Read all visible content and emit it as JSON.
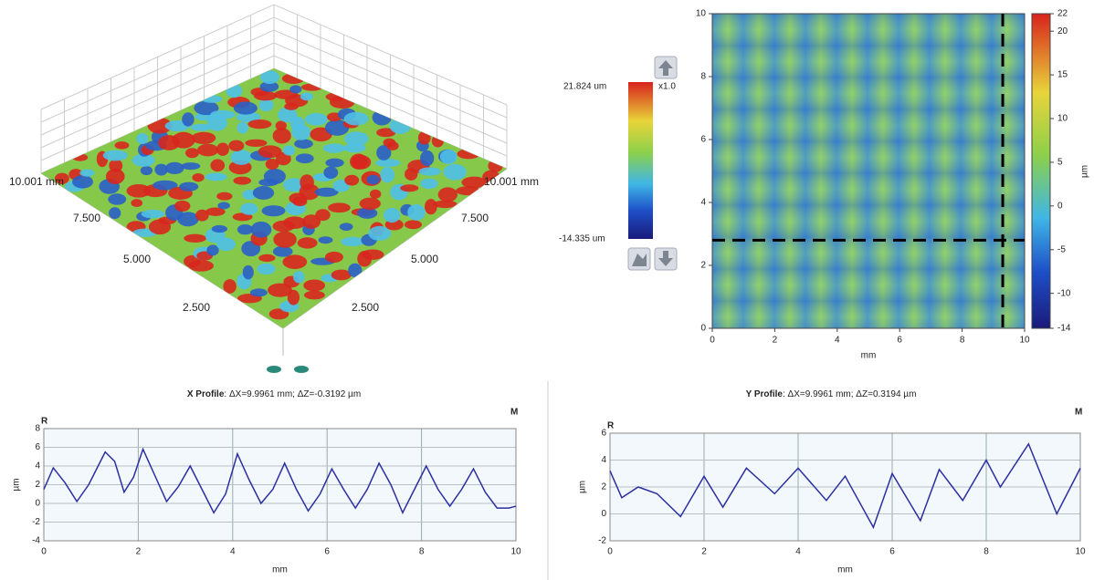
{
  "chart_data": [
    {
      "type": "surface3d",
      "left_axis_labels": [
        "10.001 mm",
        "7.500",
        "5.000",
        "2.500"
      ],
      "right_axis_labels": [
        "10.001 mm",
        "7.500",
        "5.000",
        "2.500"
      ]
    },
    {
      "type": "colorscale",
      "max_label": "21.824 um",
      "min_label": "-14.335 um",
      "zoom_label": "x1.0"
    },
    {
      "type": "heatmap",
      "xlabel": "mm",
      "xlim": [
        0,
        10
      ],
      "ylim": [
        0,
        10
      ],
      "xticks": [
        0,
        2,
        4,
        6,
        8,
        10
      ],
      "yticks": [
        0,
        2,
        4,
        6,
        8,
        10
      ],
      "colorbar": {
        "label": "µm",
        "lim": [
          -14,
          22
        ],
        "ticks": [
          -14,
          -10,
          -5,
          0,
          5,
          10,
          15,
          20,
          22
        ]
      },
      "cursor": {
        "x": 9.3,
        "y": 2.8
      }
    },
    {
      "type": "line",
      "title_bold": "X Profile",
      "title": ": ΔX=9.9961 mm; ΔZ=-0.3192 µm",
      "left_marker": "R",
      "right_marker": "M",
      "xlabel": "mm",
      "ylabel": "µm",
      "xlim": [
        0,
        10
      ],
      "ylim": [
        -4,
        8
      ],
      "xticks": [
        0,
        2,
        4,
        6,
        8,
        10
      ],
      "yticks": [
        -4,
        -2,
        0,
        2,
        4,
        6,
        8
      ],
      "grid": true,
      "x": [
        0,
        0.2,
        0.45,
        0.7,
        0.95,
        1.3,
        1.5,
        1.7,
        1.9,
        2.1,
        2.35,
        2.6,
        2.85,
        3.1,
        3.35,
        3.6,
        3.85,
        4.1,
        4.35,
        4.6,
        4.85,
        5.1,
        5.35,
        5.6,
        5.85,
        6.1,
        6.35,
        6.6,
        6.85,
        7.1,
        7.35,
        7.6,
        7.85,
        8.1,
        8.35,
        8.6,
        8.85,
        9.1,
        9.35,
        9.6,
        9.85,
        10
      ],
      "values": [
        1.5,
        3.8,
        2.2,
        0.2,
        2.0,
        5.5,
        4.5,
        1.2,
        2.8,
        5.8,
        3.0,
        0.2,
        1.8,
        4.0,
        1.5,
        -1.0,
        1.0,
        5.3,
        2.5,
        0.0,
        1.5,
        4.3,
        1.5,
        -0.8,
        1.0,
        3.7,
        1.5,
        -0.5,
        1.5,
        4.3,
        2.0,
        -1.0,
        1.5,
        4.0,
        1.5,
        -0.3,
        1.5,
        3.7,
        1.2,
        -0.5,
        -0.5,
        -0.3
      ],
      "color": "#2b2fa0"
    },
    {
      "type": "line",
      "title_bold": "Y Profile",
      "title": ": ΔX=9.9961 mm; ΔZ=0.3194 µm",
      "left_marker": "R",
      "right_marker": "M",
      "xlabel": "mm",
      "ylabel": "µm",
      "xlim": [
        0,
        10
      ],
      "ylim": [
        -2,
        6
      ],
      "xticks": [
        0,
        2,
        4,
        6,
        8,
        10
      ],
      "yticks": [
        -2,
        0,
        2,
        4,
        6
      ],
      "grid": true,
      "x": [
        0,
        0.25,
        0.6,
        1.0,
        1.5,
        2.0,
        2.4,
        2.9,
        3.5,
        4.0,
        4.6,
        5.0,
        5.6,
        6.0,
        6.6,
        7.0,
        7.5,
        8.0,
        8.3,
        8.9,
        9.5,
        10
      ],
      "values": [
        3.2,
        1.2,
        2.0,
        1.5,
        -0.2,
        2.8,
        0.5,
        3.4,
        1.5,
        3.4,
        1.0,
        2.8,
        -1.0,
        3.0,
        -0.5,
        3.3,
        1.0,
        4.0,
        2.0,
        5.2,
        0.0,
        3.4
      ],
      "color": "#2b2fa0"
    }
  ]
}
